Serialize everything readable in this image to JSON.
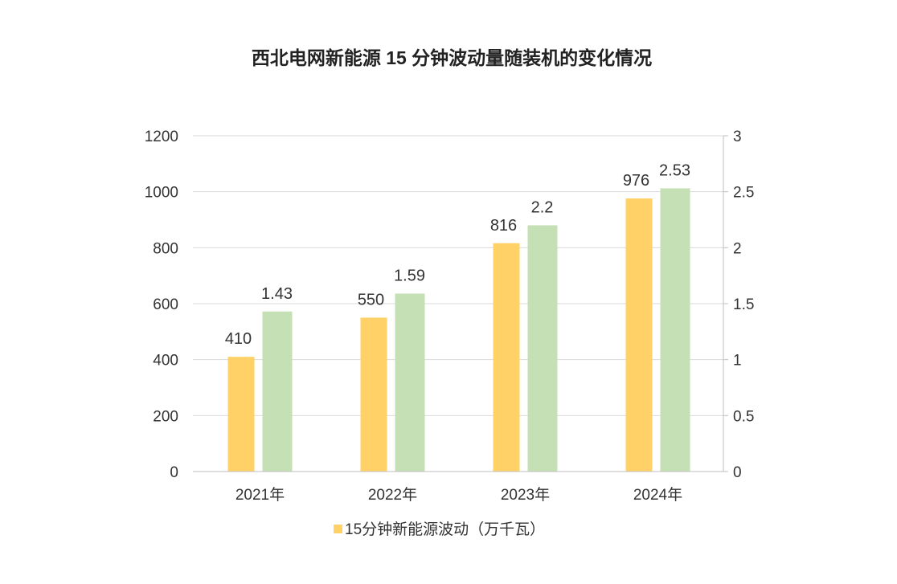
{
  "chart_data": {
    "type": "bar",
    "title": "西北电网新能源 15 分钟波动量随装机的变化情况",
    "categories": [
      "2021年",
      "2022年",
      "2023年",
      "2024年"
    ],
    "series": [
      {
        "name": "15分钟新能源波动（万千瓦）",
        "axis": "left",
        "color": "#FFD166",
        "values": [
          410,
          550,
          816,
          976
        ],
        "labels": [
          "410",
          "550",
          "816",
          "976"
        ]
      },
      {
        "axis": "right",
        "color": "#C5E0B4",
        "values": [
          1.43,
          1.59,
          2.2,
          2.53
        ],
        "labels": [
          "1.43",
          "1.59",
          "2.2",
          "2.53"
        ]
      }
    ],
    "ylim_left": [
      0,
      1200
    ],
    "yticks_left": [
      "0",
      "200",
      "400",
      "600",
      "800",
      "1000",
      "1200"
    ],
    "ylim_right": [
      0,
      3
    ],
    "yticks_right": [
      "0",
      "0.5",
      "1",
      "1.5",
      "2",
      "2.5",
      "3"
    ],
    "grid": true,
    "legend_placement": "bottom",
    "legend": [
      "15分钟新能源波动（万千瓦）"
    ]
  }
}
